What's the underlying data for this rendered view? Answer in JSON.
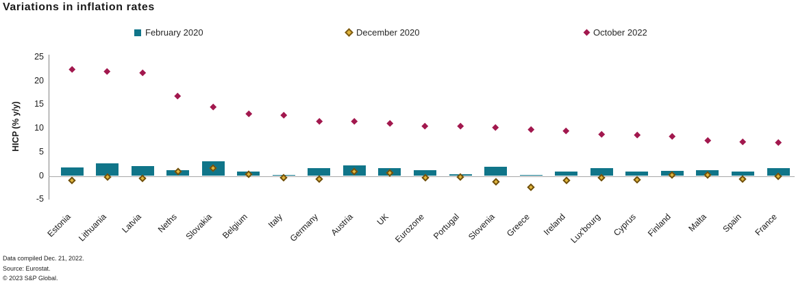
{
  "title": "Variations in inflation rates",
  "footer": {
    "line1": "Data compiled Dec. 21, 2022.",
    "line2": "Source: Eurostat.",
    "line3": "© 2023 S&P Global."
  },
  "colors": {
    "bar_teal": "#107589",
    "diamond_gold_fill": "#e0b53c",
    "diamond_gold_border": "#6f4f0e",
    "diamond_red": "#a2184e",
    "axis_line": "#808080",
    "zero_line": "#a6a6a6"
  },
  "chart_data": {
    "type": "bar",
    "subtype": "bar-plus-scatter-markers",
    "title": "Variations in inflation rates",
    "xlabel": "",
    "ylabel": "HICP (% y/y)",
    "ylim": [
      -5,
      25
    ],
    "yticks": [
      25,
      20,
      15,
      10,
      5,
      0,
      -5
    ],
    "grid": false,
    "legend_position": "top",
    "categories": [
      "Estonia",
      "Lithuania",
      "Latvia",
      "Neths",
      "Slovakia",
      "Belgium",
      "Italy",
      "Germany",
      "Austria",
      "UK",
      "Eurozone",
      "Portugal",
      "Slovenia",
      "Greece",
      "Ireland",
      "Lux'bourg",
      "Cyprus",
      "Finland",
      "Malta",
      "Spain",
      "France"
    ],
    "series": [
      {
        "name": "February 2020",
        "type": "bar",
        "marker": "square",
        "color": "#107589",
        "values": [
          1.8,
          2.7,
          2.1,
          1.2,
          3.1,
          0.9,
          0.2,
          1.7,
          2.2,
          1.7,
          1.2,
          0.4,
          2.0,
          0.2,
          0.9,
          1.7,
          1.0,
          1.1,
          1.2,
          0.9,
          1.6
        ]
      },
      {
        "name": "December 2020",
        "type": "scatter",
        "marker": "open-diamond",
        "color": "#b8860b",
        "values": [
          -0.9,
          -0.2,
          -0.5,
          1.0,
          1.6,
          0.4,
          -0.3,
          -0.7,
          1.0,
          0.6,
          -0.3,
          -0.2,
          -1.2,
          -2.4,
          -1.0,
          -0.3,
          -0.8,
          0.2,
          0.2,
          -0.6,
          0.0
        ]
      },
      {
        "name": "October 2022",
        "type": "scatter",
        "marker": "diamond",
        "color": "#a2184e",
        "values": [
          22.5,
          22.1,
          21.8,
          16.8,
          14.5,
          13.1,
          12.8,
          11.6,
          11.5,
          11.1,
          10.6,
          10.6,
          10.3,
          9.8,
          9.6,
          8.8,
          8.6,
          8.4,
          7.5,
          7.3,
          7.1
        ]
      }
    ]
  }
}
